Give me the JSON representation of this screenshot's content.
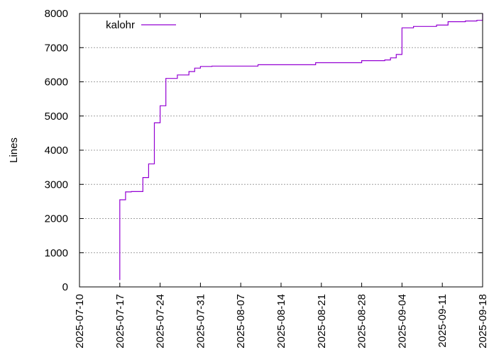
{
  "chart_data": {
    "type": "line",
    "title": "",
    "xlabel": "",
    "ylabel": "Lines",
    "xlim": [
      "2025-07-10",
      "2025-09-18"
    ],
    "ylim": [
      0,
      8000
    ],
    "grid": true,
    "legend_position": "top-left",
    "x_ticks": [
      "2025-07-10",
      "2025-07-17",
      "2025-07-24",
      "2025-07-31",
      "2025-08-07",
      "2025-08-14",
      "2025-08-21",
      "2025-08-28",
      "2025-09-04",
      "2025-09-11",
      "2025-09-18"
    ],
    "y_ticks": [
      0,
      1000,
      2000,
      3000,
      4000,
      5000,
      6000,
      7000,
      8000
    ],
    "series": [
      {
        "name": "kalohr",
        "color": "#9400d3",
        "x": [
          "2025-07-17",
          "2025-07-17",
          "2025-07-17",
          "2025-07-18",
          "2025-07-18",
          "2025-07-19",
          "2025-07-21",
          "2025-07-21",
          "2025-07-22",
          "2025-07-22",
          "2025-07-23",
          "2025-07-23",
          "2025-07-24",
          "2025-07-24",
          "2025-07-25",
          "2025-07-27",
          "2025-07-29",
          "2025-07-30",
          "2025-07-31",
          "2025-08-02",
          "2025-08-10",
          "2025-08-20",
          "2025-08-28",
          "2025-09-01",
          "2025-09-02",
          "2025-09-03",
          "2025-09-04",
          "2025-09-04",
          "2025-09-06",
          "2025-09-10",
          "2025-09-12",
          "2025-09-15",
          "2025-09-17",
          "2025-09-18"
        ],
        "y": [
          200,
          2500,
          2550,
          2750,
          2780,
          2790,
          2800,
          3200,
          3300,
          3600,
          4200,
          4800,
          5200,
          5300,
          6100,
          6200,
          6300,
          6400,
          6450,
          6460,
          6500,
          6560,
          6620,
          6640,
          6700,
          6800,
          7050,
          7580,
          7620,
          7660,
          7760,
          7780,
          7800,
          8000
        ]
      }
    ]
  }
}
